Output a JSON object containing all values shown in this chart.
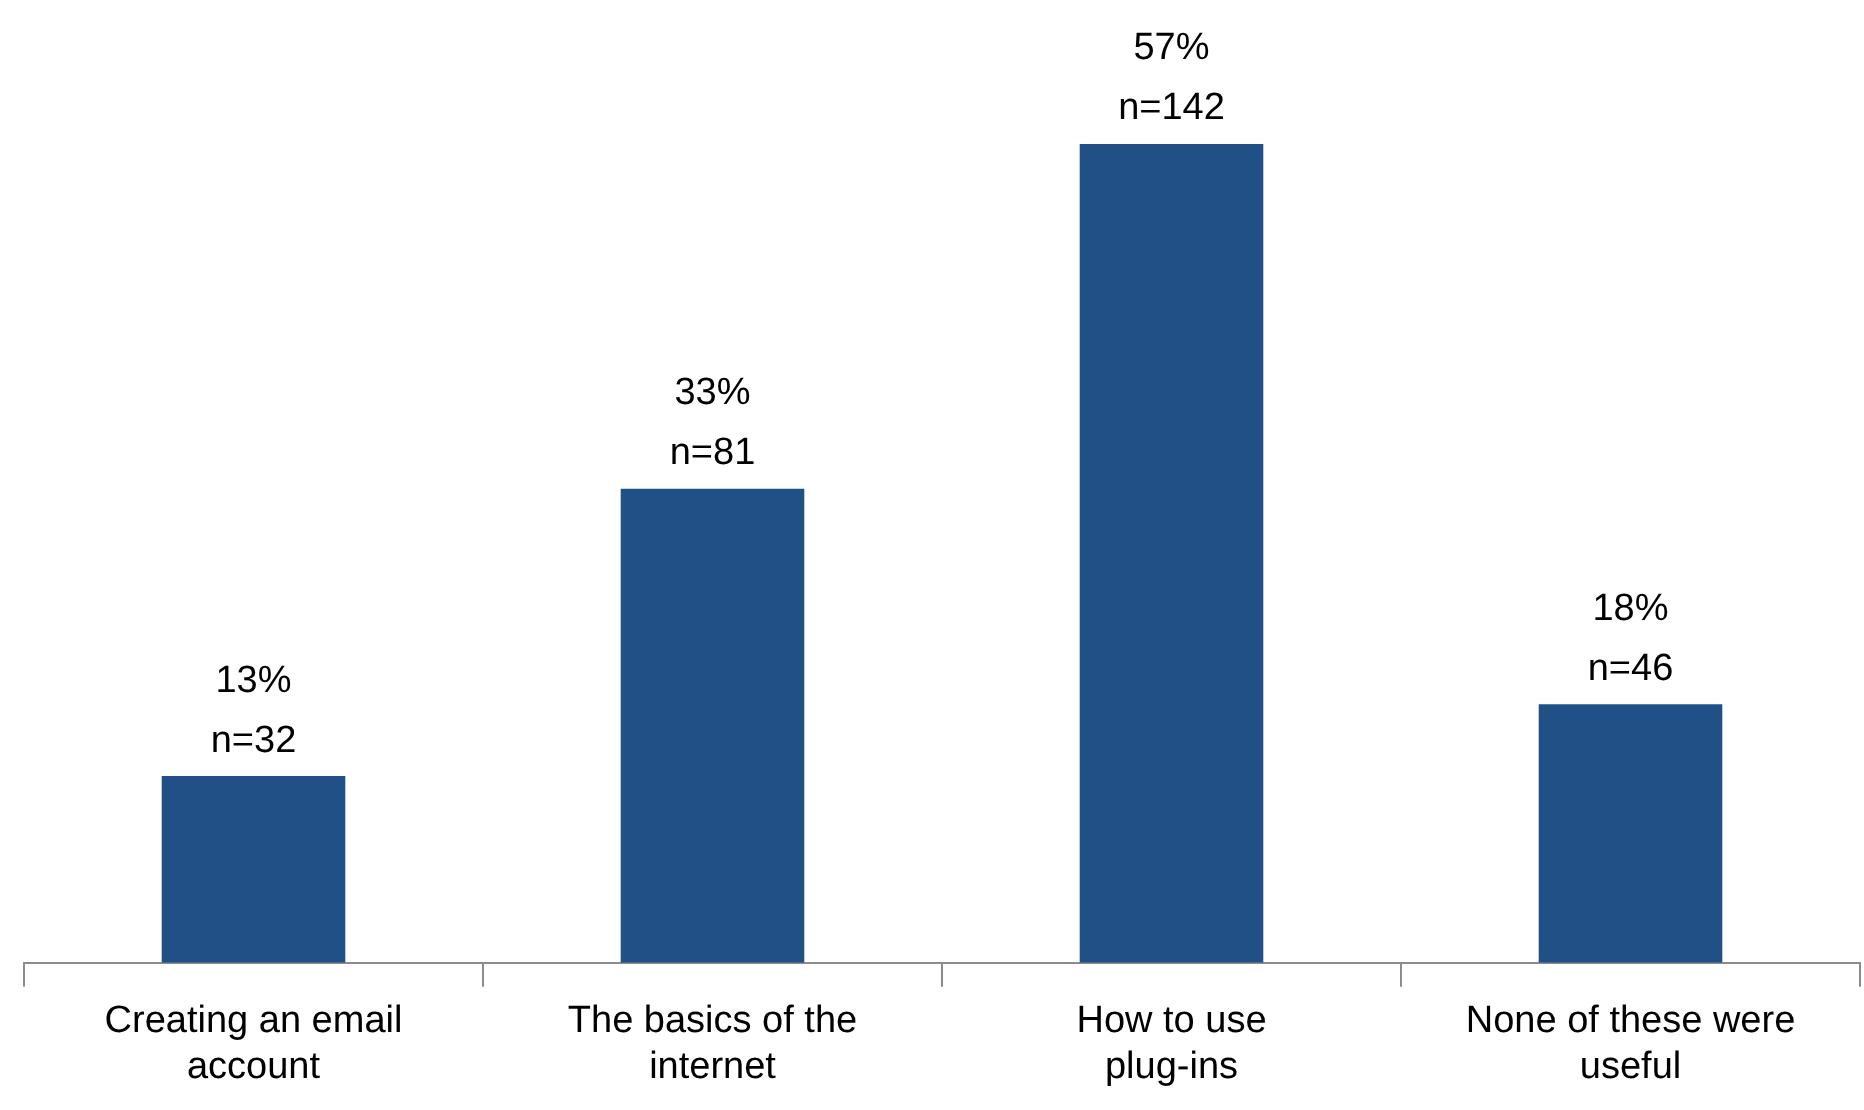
{
  "chart_data": {
    "type": "bar",
    "categories": [
      "Creating an email account",
      "The basics of the internet",
      "How to use plug-ins",
      "None of these were useful"
    ],
    "values": [
      13,
      33,
      57,
      18
    ],
    "color": "#215086",
    "value_labels": [
      "13%\nn=32",
      "33%\nn=81",
      "57%\nn=142",
      "18%\nn=46"
    ],
    "ylim": [
      0,
      57
    ],
    "grid": false,
    "legend": false,
    "tick_labels": "x"
  }
}
